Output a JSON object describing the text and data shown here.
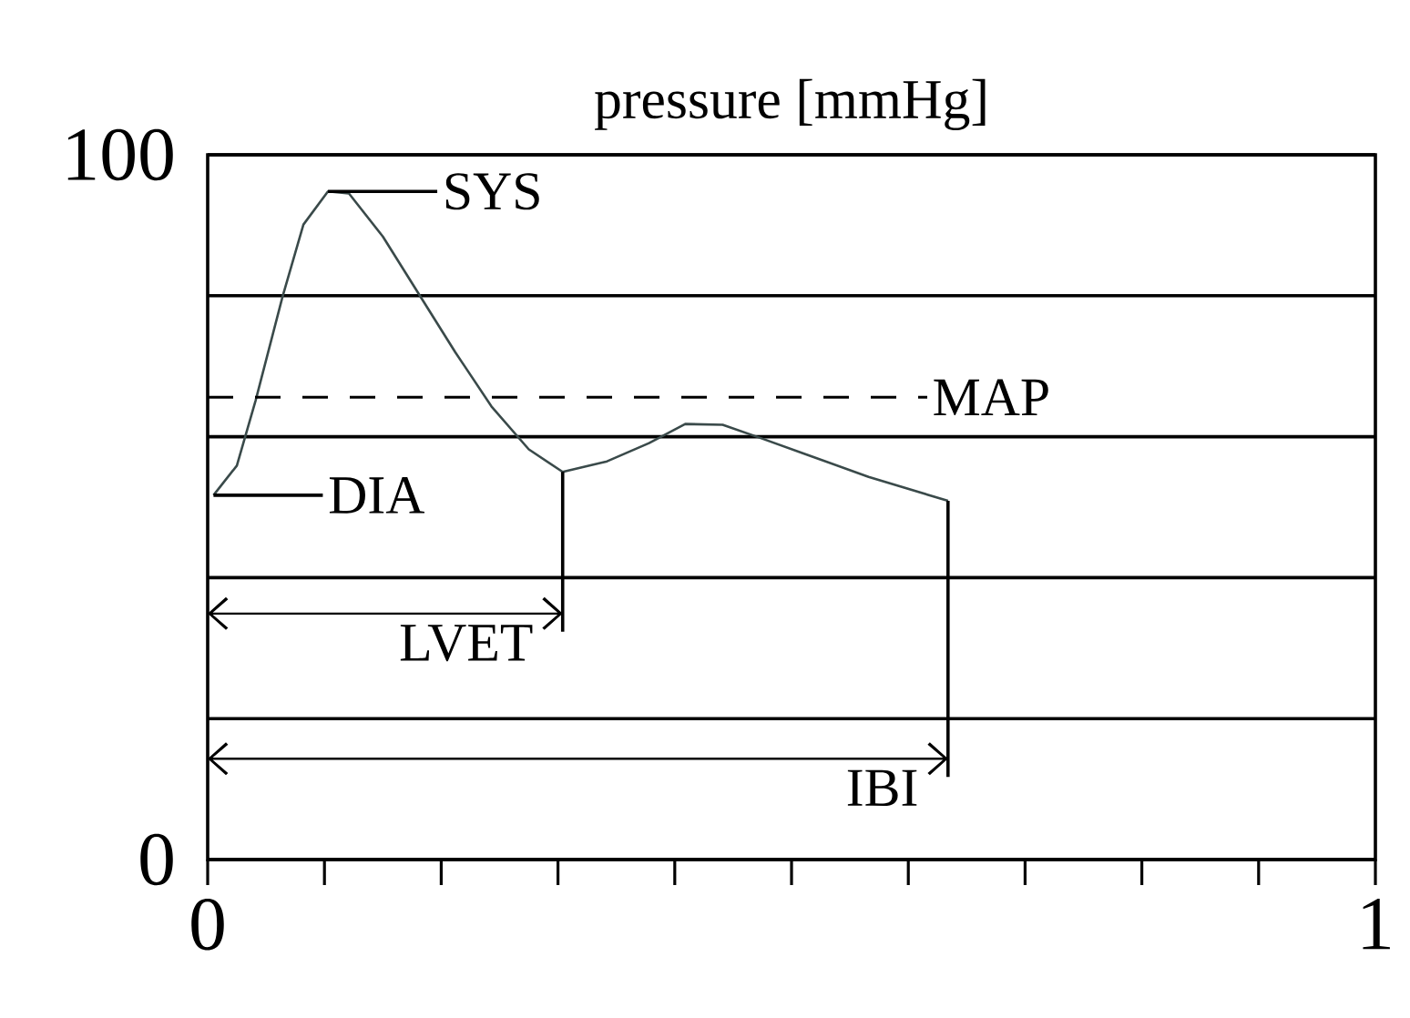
{
  "chart_data": {
    "type": "line",
    "title": "pressure [mmHg]",
    "xlim": [
      0,
      1
    ],
    "ylim": [
      0,
      100
    ],
    "xticks": [
      0,
      {
        "value": 0.1,
        "label": null
      },
      {
        "value": 0.2,
        "label": null
      },
      {
        "value": 0.3,
        "label": null
      },
      {
        "value": 0.4,
        "label": null
      },
      {
        "value": 0.5,
        "label": null
      },
      {
        "value": 0.6,
        "label": null
      },
      {
        "value": 0.7,
        "label": null
      },
      {
        "value": 0.8,
        "label": null
      },
      {
        "value": 0.9,
        "label": null
      },
      1
    ],
    "yticks": [
      0,
      {
        "value": 20,
        "label": null
      },
      {
        "value": 40,
        "label": null
      },
      {
        "value": 60,
        "label": null
      },
      {
        "value": 80,
        "label": null
      },
      100
    ],
    "grid": "y",
    "series": [
      {
        "color": "#3a4a4a",
        "x": [
          0.005,
          0.025,
          0.041,
          0.064,
          0.082,
          0.103,
          0.121,
          0.15,
          0.181,
          0.212,
          0.243,
          0.275,
          0.304,
          0.342,
          0.378,
          0.409,
          0.441,
          0.472,
          0.514,
          0.566,
          0.634
        ],
        "values": [
          51.7,
          55.9,
          65.1,
          79.8,
          90.1,
          94.8,
          94.5,
          88.4,
          80.2,
          72.0,
          64.3,
          58.2,
          55.0,
          56.5,
          59.1,
          61.8,
          61.7,
          59.9,
          57.4,
          54.3,
          50.9
        ]
      }
    ],
    "ref_lines": [
      {
        "axis": "y",
        "value": 65.6,
        "label": "MAP",
        "line_style": "dashed"
      },
      {
        "axis": "x",
        "value": 0.304,
        "label": "LVET"
      },
      {
        "axis": "x",
        "value": 0.634,
        "label": "IBI"
      }
    ],
    "annotations": [
      {
        "text": "SYS",
        "x": 0.103,
        "y": 94.8
      },
      {
        "text": "DIA",
        "x": 0.005,
        "y": 51.7
      }
    ]
  }
}
